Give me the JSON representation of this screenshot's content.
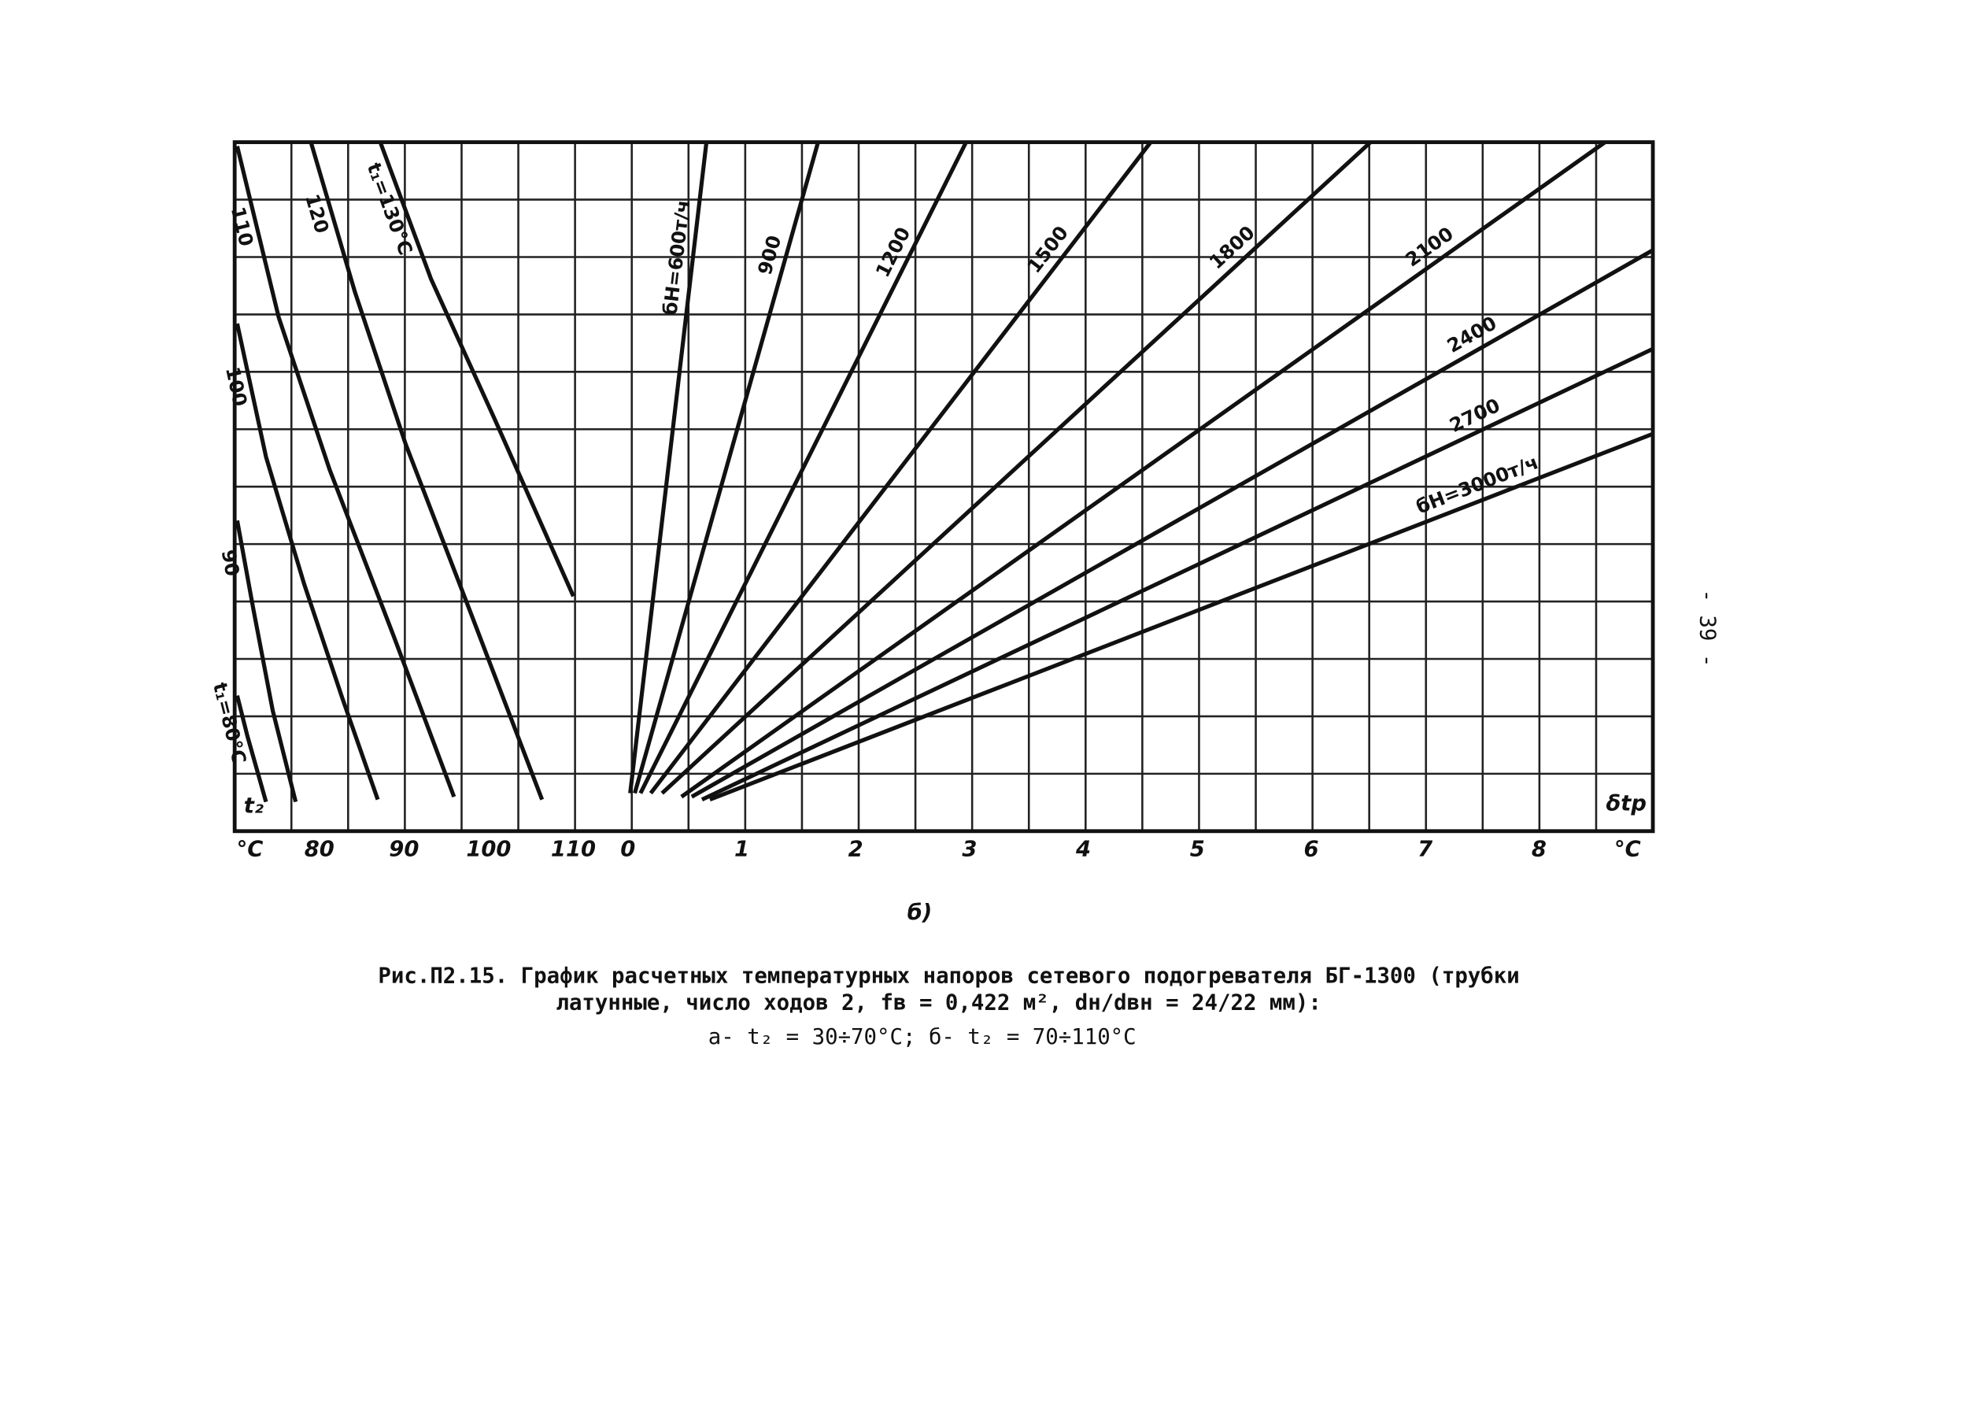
{
  "chart_data": [
    {
      "type": "line",
      "xlabel": "t₂",
      "xunit": "°C",
      "xlim": [
        70,
        110
      ],
      "ylim": [
        0,
        12
      ],
      "xticks": [
        80,
        90,
        100,
        110
      ],
      "series": [
        {
          "name": "t₁=80°C",
          "color": "#111111",
          "x": [
            70.3,
            71.5,
            73.7
          ],
          "values": [
            2.36,
            1.66,
            0.51
          ]
        },
        {
          "name": "90",
          "color": "#111111",
          "x": [
            70.3,
            72.2,
            74.5,
            77.2
          ],
          "values": [
            5.41,
            3.87,
            2.1,
            0.51
          ]
        },
        {
          "name": "100",
          "color": "#111111",
          "x": [
            70.3,
            73.7,
            78.2,
            82.7,
            86.9
          ],
          "values": [
            8.84,
            6.52,
            4.31,
            2.32,
            0.55
          ]
        },
        {
          "name": "110",
          "color": "#111111",
          "x": [
            70.3,
            75.2,
            81.2,
            88.7,
            95.9
          ],
          "values": [
            11.93,
            8.95,
            6.3,
            3.43,
            0.6
          ]
        },
        {
          "name": "120",
          "color": "#111111",
          "x": [
            79.0,
            84.2,
            90.2,
            97.7,
            106.3
          ],
          "values": [
            12.0,
            9.39,
            6.74,
            3.87,
            0.55
          ]
        },
        {
          "name": "t₁=130°C",
          "color": "#111111",
          "x": [
            87.2,
            93.2,
            100.7,
            110.0
          ],
          "values": [
            12.0,
            9.61,
            7.18,
            4.09
          ]
        }
      ]
    },
    {
      "type": "line",
      "xlabel": "δtр",
      "xunit": "°C",
      "xlim": [
        0,
        9
      ],
      "ylim": [
        0,
        12
      ],
      "xticks": [
        0,
        1,
        2,
        3,
        4,
        5,
        6,
        7,
        8
      ],
      "series": [
        {
          "name": "бН=600т/ч",
          "color": "#111111",
          "x": [
            0.02,
            0.69
          ],
          "values": [
            0.66,
            12.0
          ]
        },
        {
          "name": "900",
          "color": "#111111",
          "x": [
            0.06,
            1.67
          ],
          "values": [
            0.66,
            12.0
          ]
        },
        {
          "name": "1200",
          "color": "#111111",
          "x": [
            0.11,
            2.97
          ],
          "values": [
            0.66,
            12.0
          ]
        },
        {
          "name": "1500",
          "color": "#111111",
          "x": [
            0.2,
            4.59
          ],
          "values": [
            0.66,
            12.0
          ]
        },
        {
          "name": "1800",
          "color": "#111111",
          "x": [
            0.3,
            6.52
          ],
          "values": [
            0.66,
            12.0
          ]
        },
        {
          "name": "2100",
          "color": "#111111",
          "x": [
            0.47,
            8.58
          ],
          "values": [
            0.6,
            12.0
          ]
        },
        {
          "name": "2400",
          "color": "#111111",
          "x": [
            0.56,
            9.0
          ],
          "values": [
            0.6,
            10.12
          ]
        },
        {
          "name": "2700",
          "color": "#111111",
          "x": [
            0.65,
            9.0
          ],
          "values": [
            0.55,
            8.4
          ]
        },
        {
          "name": "бН=3000т/ч",
          "color": "#111111",
          "x": [
            0.72,
            9.0
          ],
          "values": [
            0.55,
            6.92
          ]
        }
      ]
    }
  ],
  "panel_label": "б)",
  "caption": [
    "Рис.П2.15. График расчетных температурных напоров сетевого подогревателя БГ-1300 (трубки",
    "латунные, число ходов 2, fв = 0,422 м², dн/dвн = 24/22 мм):",
    "а- t₂ = 30÷70°С;  б- t₂ = 70÷110°С"
  ],
  "page_number": "- 39 -"
}
